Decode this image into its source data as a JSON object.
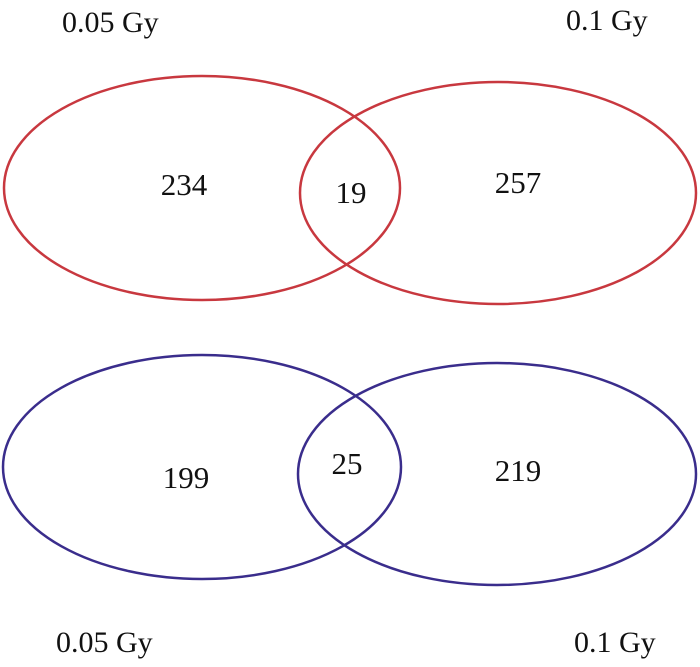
{
  "diagrams": [
    {
      "color": "#c8383f",
      "left_set": {
        "label": "0.05 Gy",
        "only_count": "234"
      },
      "right_set": {
        "label": "0.1 Gy",
        "only_count": "257"
      },
      "intersection_count": "19"
    },
    {
      "color": "#3a2d8c",
      "left_set": {
        "label": "0.05 Gy",
        "only_count": "199"
      },
      "right_set": {
        "label": "0.1 Gy",
        "only_count": "219"
      },
      "intersection_count": "25"
    }
  ]
}
